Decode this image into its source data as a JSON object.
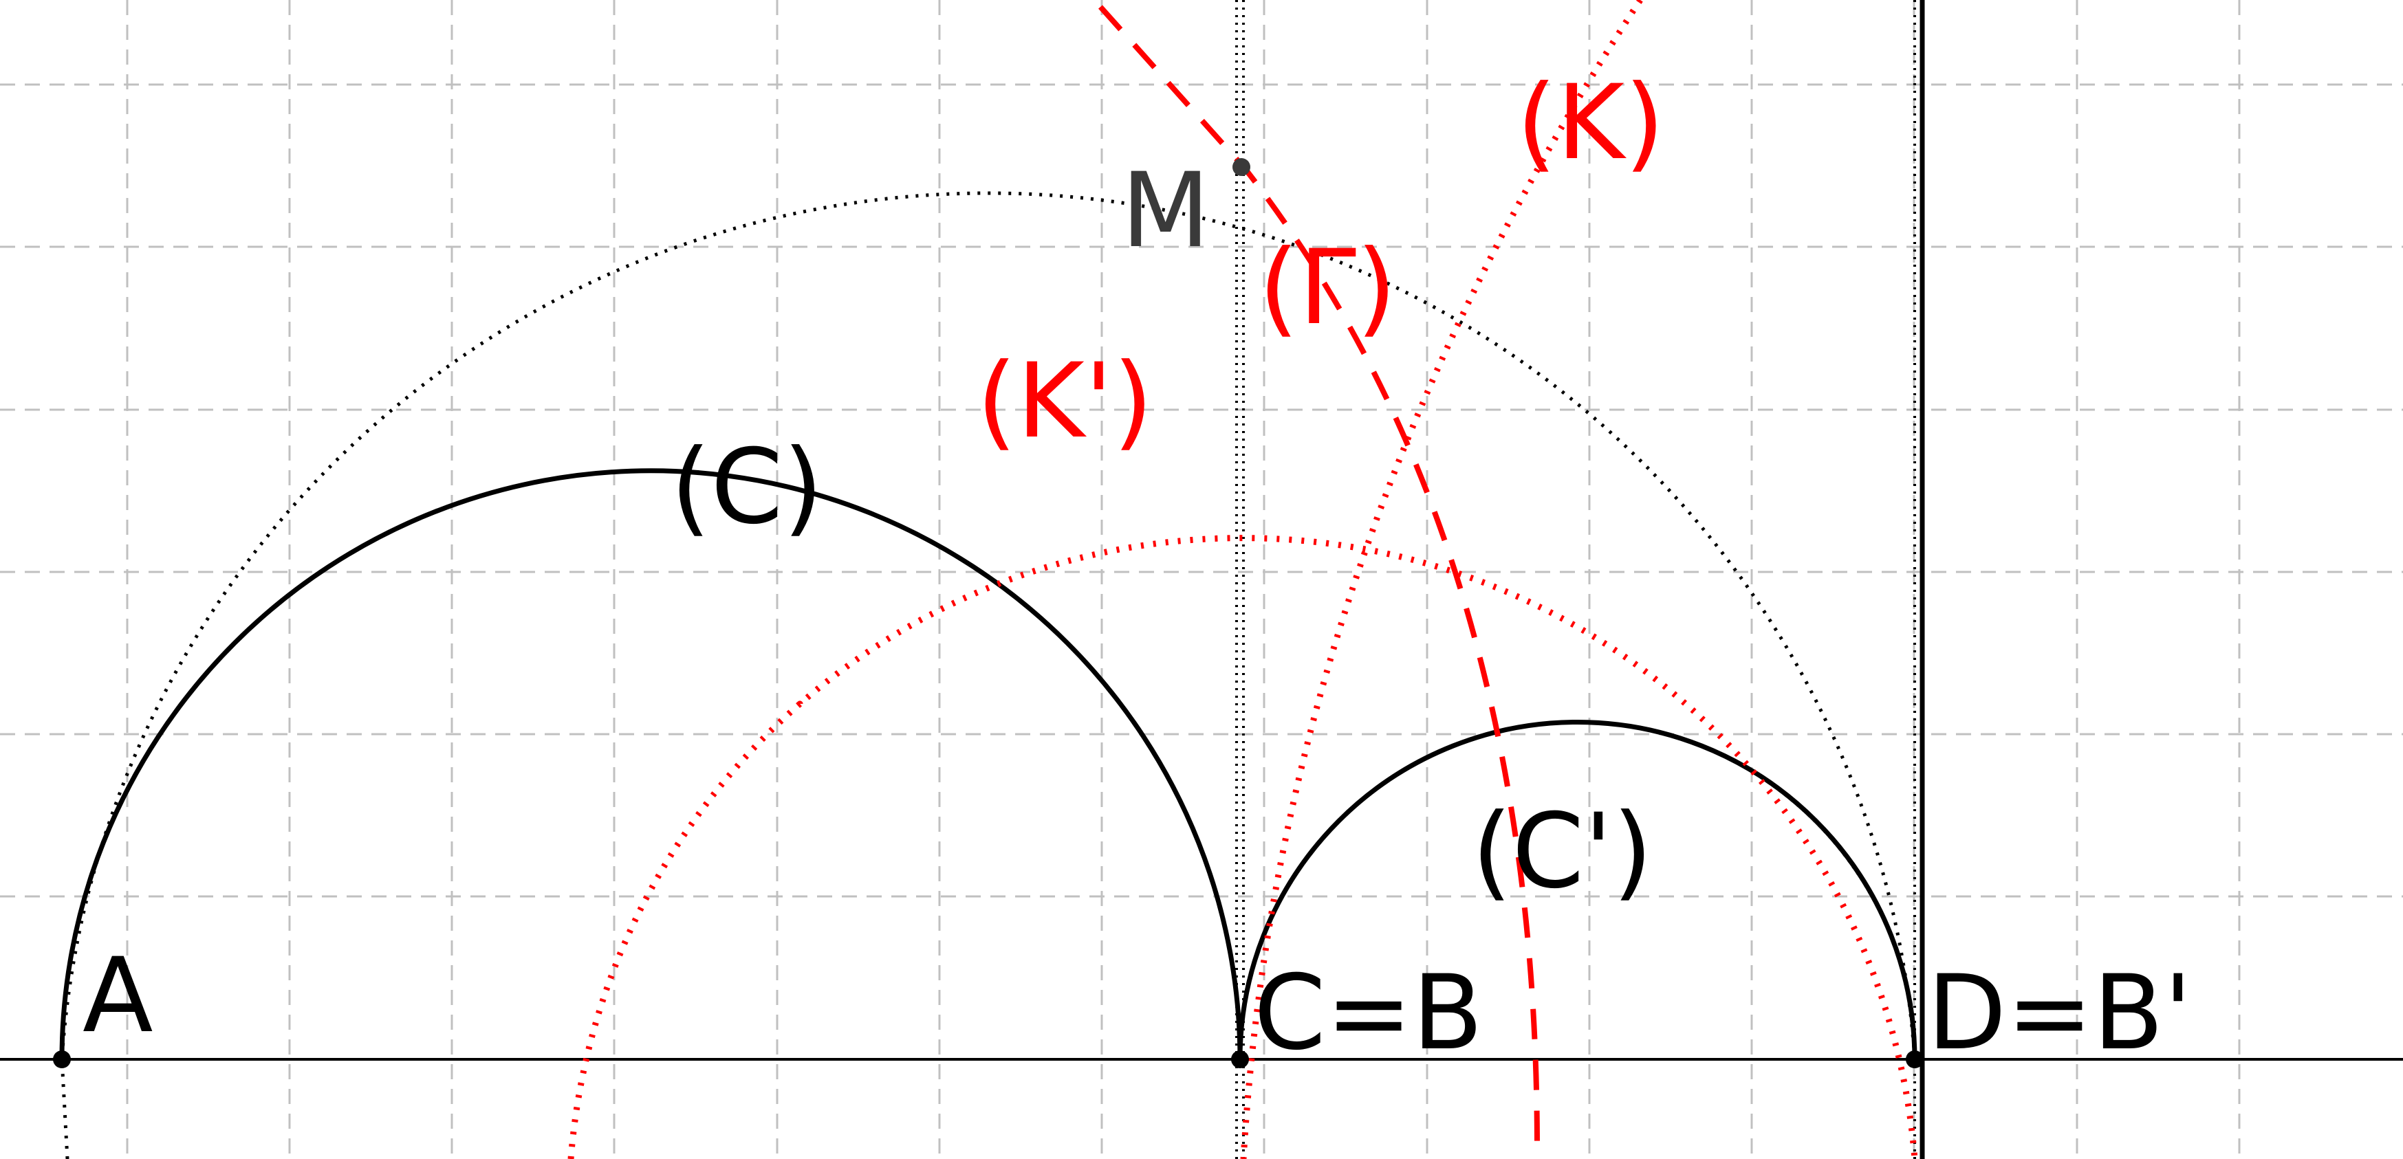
{
  "colors": {
    "background": "#ffffff",
    "grid": "#c0c0c0",
    "black": "#000000",
    "point_label": "#3a3a3a",
    "red": "#ff0000"
  },
  "points": {
    "A": "A",
    "CB": "C=B",
    "DB": "D=B'",
    "M": "M"
  },
  "curves": {
    "C": "(C)",
    "C_prime": "(C')",
    "K": "(K)",
    "K_prime": "(K')",
    "Gamma": "(Γ)"
  }
}
